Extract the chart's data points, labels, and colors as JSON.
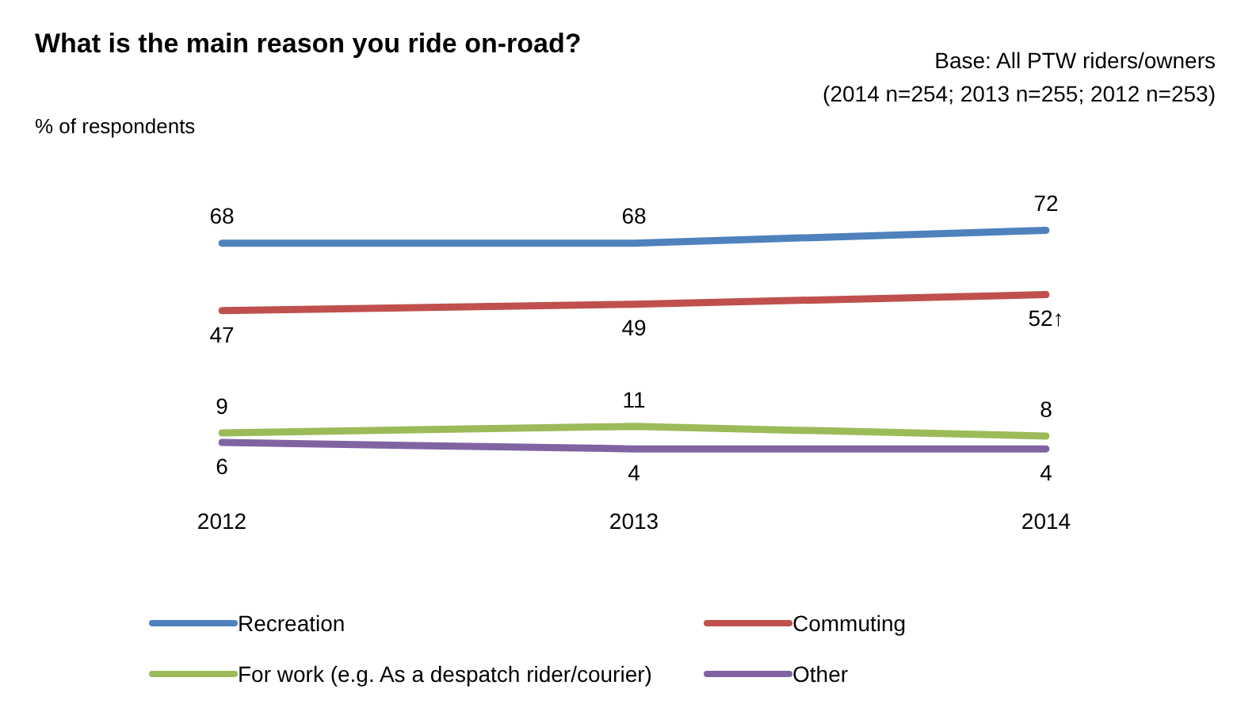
{
  "chart_data": {
    "type": "line",
    "title": "What is the main reason you ride on-road?",
    "ylabel": "% of respondents",
    "annotations": [
      "Base: All PTW riders/owners\n(2014 n=254; 2013 n=255; 2012 n=253)"
    ],
    "categories": [
      "2012",
      "2013",
      "2014"
    ],
    "series": [
      {
        "name": "Recreation",
        "color": "#4f81bd",
        "values": [
          68,
          68,
          72
        ],
        "value_labels": [
          "68",
          "68",
          "72"
        ]
      },
      {
        "name": "Commuting",
        "color": "#c0504d",
        "values": [
          47,
          49,
          52
        ],
        "value_labels": [
          "47",
          "49",
          "52↑"
        ]
      },
      {
        "name": "For work (e.g. As a despatch rider/courier)",
        "color": "#9bbb59",
        "values": [
          9,
          11,
          8
        ],
        "value_labels": [
          "9",
          "11",
          "8"
        ]
      },
      {
        "name": "Other",
        "color": "#8064a2",
        "values": [
          6,
          4,
          4
        ],
        "value_labels": [
          "6",
          "4",
          "4"
        ]
      }
    ],
    "tick_labels": "x",
    "grid": false,
    "legend": "bottom",
    "marker": "none",
    "line_style": "solid"
  }
}
